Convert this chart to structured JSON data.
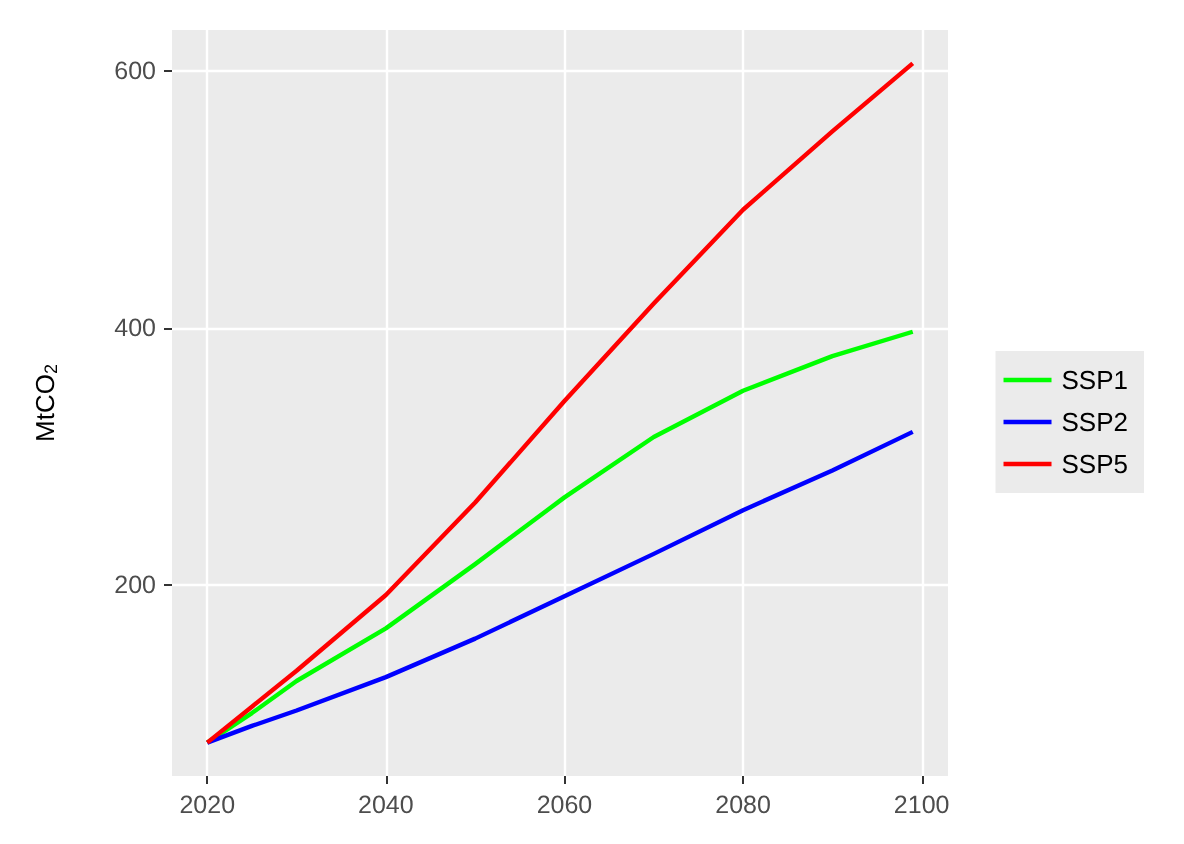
{
  "chart_data": {
    "type": "line",
    "ylabel": "MtCO$_{2}$",
    "x": [
      2020,
      2025,
      2030,
      2040,
      2050,
      2060,
      2070,
      2080,
      2090,
      2099
    ],
    "series": [
      {
        "name": "SSP1",
        "color": "#00ff00",
        "values": [
          77,
          100,
          125,
          166,
          216,
          268,
          315,
          351,
          378,
          397
        ]
      },
      {
        "name": "SSP2",
        "color": "#0000ff",
        "values": [
          77,
          90,
          102,
          128,
          158,
          191,
          224,
          258,
          289,
          319
        ]
      },
      {
        "name": "SSP5",
        "color": "#ff0000",
        "values": [
          77,
          105,
          133,
          192,
          264,
          343,
          419,
          492,
          553,
          606
        ]
      }
    ],
    "xlim": [
      2016.05,
      2102.95
    ],
    "xticks": [
      2020,
      2040,
      2060,
      2080,
      2100
    ],
    "ylim": [
      51,
      632
    ],
    "yticks": [
      200,
      400,
      600
    ],
    "grid": true,
    "legend": "right",
    "marker": "none",
    "line_style": "solid"
  }
}
